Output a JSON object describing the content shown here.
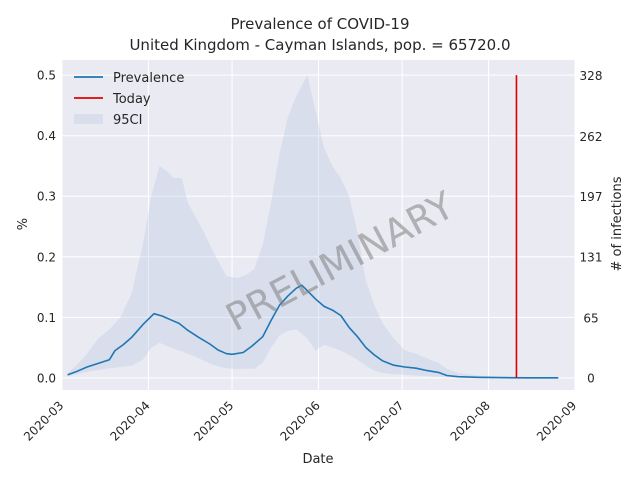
{
  "chart_data": {
    "type": "line",
    "title": "Prevalence of COVID-19",
    "subtitle": "United Kingdom - Cayman Islands, pop. = 65720.0",
    "xlabel": "Date",
    "ylabel": "%",
    "ylabel_right": "# of infections",
    "xlim": [
      "2020-03-01",
      "2020-09-01"
    ],
    "ylim": [
      -0.02,
      0.525
    ],
    "x_ticks": [
      "2020-03",
      "2020-04",
      "2020-05",
      "2020-06",
      "2020-07",
      "2020-08",
      "2020-09"
    ],
    "y_ticks": [
      "0.0",
      "0.1",
      "0.2",
      "0.3",
      "0.4",
      "0.5"
    ],
    "y_right_ticks": [
      {
        "value": 0,
        "label": "0"
      },
      {
        "value": 0.0989,
        "label": "65"
      },
      {
        "value": 0.1993,
        "label": "131"
      },
      {
        "value": 0.2998,
        "label": "197"
      },
      {
        "value": 0.3987,
        "label": "262"
      },
      {
        "value": 0.4991,
        "label": "328"
      }
    ],
    "grid": true,
    "legend": {
      "placement": "top-left",
      "entries": [
        "Prevalence",
        "Today",
        "95CI"
      ]
    },
    "watermark": "PRELIMINARY",
    "today": {
      "date": "2020-08-11",
      "y_range": [
        0,
        0.5
      ]
    },
    "series": [
      {
        "name": "Prevalence",
        "color": "#1f77b4",
        "points": [
          [
            "2020-03-03",
            0.005
          ],
          [
            "2020-03-06",
            0.01
          ],
          [
            "2020-03-10",
            0.018
          ],
          [
            "2020-03-14",
            0.024
          ],
          [
            "2020-03-18",
            0.03
          ],
          [
            "2020-03-20",
            0.045
          ],
          [
            "2020-03-23",
            0.055
          ],
          [
            "2020-03-26",
            0.067
          ],
          [
            "2020-03-30",
            0.088
          ],
          [
            "2020-04-03",
            0.106
          ],
          [
            "2020-04-06",
            0.102
          ],
          [
            "2020-04-09",
            0.096
          ],
          [
            "2020-04-12",
            0.09
          ],
          [
            "2020-04-15",
            0.079
          ],
          [
            "2020-04-19",
            0.067
          ],
          [
            "2020-04-23",
            0.056
          ],
          [
            "2020-04-26",
            0.046
          ],
          [
            "2020-04-29",
            0.04
          ],
          [
            "2020-05-01",
            0.039
          ],
          [
            "2020-05-05",
            0.042
          ],
          [
            "2020-05-08",
            0.052
          ],
          [
            "2020-05-12",
            0.068
          ],
          [
            "2020-05-15",
            0.095
          ],
          [
            "2020-05-18",
            0.12
          ],
          [
            "2020-05-21",
            0.135
          ],
          [
            "2020-05-24",
            0.148
          ],
          [
            "2020-05-26",
            0.153
          ],
          [
            "2020-05-28",
            0.144
          ],
          [
            "2020-05-31",
            0.13
          ],
          [
            "2020-06-03",
            0.118
          ],
          [
            "2020-06-06",
            0.112
          ],
          [
            "2020-06-09",
            0.103
          ],
          [
            "2020-06-12",
            0.083
          ],
          [
            "2020-06-15",
            0.068
          ],
          [
            "2020-06-18",
            0.05
          ],
          [
            "2020-06-21",
            0.038
          ],
          [
            "2020-06-24",
            0.028
          ],
          [
            "2020-06-28",
            0.021
          ],
          [
            "2020-07-02",
            0.018
          ],
          [
            "2020-07-06",
            0.016
          ],
          [
            "2020-07-10",
            0.012
          ],
          [
            "2020-07-14",
            0.009
          ],
          [
            "2020-07-17",
            0.004
          ],
          [
            "2020-07-21",
            0.002
          ],
          [
            "2020-07-28",
            0.001
          ],
          [
            "2020-08-05",
            0.0005
          ],
          [
            "2020-08-15",
            0.0002
          ],
          [
            "2020-08-26",
            0.0001
          ]
        ]
      }
    ],
    "band": {
      "name": "95CI",
      "color": "#b0c4de",
      "points": [
        [
          "2020-03-03",
          0.003,
          0.008
        ],
        [
          "2020-03-06",
          0.006,
          0.02
        ],
        [
          "2020-03-10",
          0.01,
          0.04
        ],
        [
          "2020-03-14",
          0.013,
          0.065
        ],
        [
          "2020-03-18",
          0.016,
          0.08
        ],
        [
          "2020-03-22",
          0.018,
          0.1
        ],
        [
          "2020-03-26",
          0.02,
          0.14
        ],
        [
          "2020-03-30",
          0.03,
          0.22
        ],
        [
          "2020-04-02",
          0.05,
          0.3
        ],
        [
          "2020-04-05",
          0.058,
          0.35
        ],
        [
          "2020-04-08",
          0.052,
          0.34
        ],
        [
          "2020-04-10",
          0.048,
          0.33
        ],
        [
          "2020-04-13",
          0.044,
          0.33
        ],
        [
          "2020-04-15",
          0.04,
          0.29
        ],
        [
          "2020-04-18",
          0.035,
          0.265
        ],
        [
          "2020-04-21",
          0.028,
          0.24
        ],
        [
          "2020-04-24",
          0.022,
          0.21
        ],
        [
          "2020-04-27",
          0.018,
          0.185
        ],
        [
          "2020-04-29",
          0.016,
          0.168
        ],
        [
          "2020-05-03",
          0.014,
          0.165
        ],
        [
          "2020-05-06",
          0.015,
          0.17
        ],
        [
          "2020-05-09",
          0.015,
          0.18
        ],
        [
          "2020-05-12",
          0.025,
          0.22
        ],
        [
          "2020-05-15",
          0.05,
          0.29
        ],
        [
          "2020-05-18",
          0.07,
          0.37
        ],
        [
          "2020-05-21",
          0.078,
          0.43
        ],
        [
          "2020-05-24",
          0.08,
          0.465
        ],
        [
          "2020-05-28",
          0.065,
          0.5
        ],
        [
          "2020-05-31",
          0.045,
          0.44
        ],
        [
          "2020-06-03",
          0.055,
          0.38
        ],
        [
          "2020-06-06",
          0.05,
          0.35
        ],
        [
          "2020-06-09",
          0.045,
          0.33
        ],
        [
          "2020-06-12",
          0.038,
          0.3
        ],
        [
          "2020-06-15",
          0.03,
          0.24
        ],
        [
          "2020-06-18",
          0.02,
          0.16
        ],
        [
          "2020-06-21",
          0.012,
          0.12
        ],
        [
          "2020-06-24",
          0.008,
          0.09
        ],
        [
          "2020-06-28",
          0.006,
          0.065
        ],
        [
          "2020-07-02",
          0.005,
          0.045
        ],
        [
          "2020-07-06",
          0.004,
          0.04
        ],
        [
          "2020-07-10",
          0.003,
          0.032
        ],
        [
          "2020-07-14",
          0.002,
          0.025
        ],
        [
          "2020-07-17",
          0.001,
          0.015
        ],
        [
          "2020-07-21",
          0.0005,
          0.008
        ],
        [
          "2020-07-28",
          0.0003,
          0.004
        ],
        [
          "2020-08-05",
          0.0001,
          0.002
        ],
        [
          "2020-08-15",
          0.0001,
          0.001
        ],
        [
          "2020-08-26",
          0.0001,
          0.0005
        ]
      ]
    }
  }
}
